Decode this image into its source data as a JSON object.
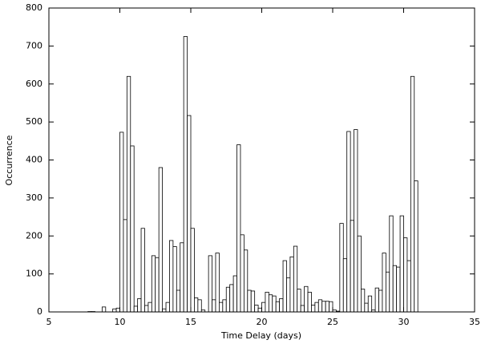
{
  "chart_data": {
    "type": "histogram",
    "x_label": "Time Delay (days)",
    "y_label": "Occurrence",
    "bins": [
      7.75,
      8,
      8.25,
      8.5,
      8.75,
      9,
      9.25,
      9.5,
      9.75,
      10,
      10.25,
      10.5,
      10.75,
      11,
      11.25,
      11.5,
      11.75,
      12,
      12.25,
      12.5,
      12.75,
      13,
      13.25,
      13.5,
      13.75,
      14,
      14.25,
      14.5,
      14.75,
      15,
      15.25,
      15.5,
      15.75,
      16,
      16.25,
      16.5,
      16.75,
      17,
      17.25,
      17.5,
      17.75,
      18,
      18.25,
      18.5,
      18.75,
      19,
      19.25,
      19.5,
      19.75,
      20,
      20.25,
      20.5,
      20.75,
      21,
      21.25,
      21.5,
      21.75,
      22,
      22.25,
      22.5,
      22.75,
      23,
      23.25,
      23.5,
      23.75,
      24,
      24.25,
      24.5,
      24.75,
      25,
      25.25,
      25.5,
      25.75,
      26,
      26.25,
      26.5,
      26.75,
      27,
      27.25,
      27.5,
      27.75,
      28,
      28.25,
      28.5,
      28.75,
      29,
      29.25,
      29.5,
      29.75,
      30,
      30.25,
      30.5,
      30.75,
      31
    ],
    "values": [
      1,
      1,
      0,
      0,
      13,
      0,
      0,
      8,
      10,
      473,
      243,
      620,
      437,
      15,
      35,
      220,
      17,
      25,
      148,
      143,
      380,
      8,
      25,
      188,
      172,
      57,
      182,
      725,
      517,
      220,
      37,
      32,
      5,
      0,
      148,
      32,
      155,
      25,
      32,
      65,
      72,
      95,
      440,
      203,
      163,
      57,
      55,
      18,
      10,
      25,
      52,
      45,
      42,
      27,
      35,
      135,
      90,
      145,
      173,
      60,
      17,
      67,
      52,
      18,
      25,
      32,
      28,
      28,
      27,
      5,
      2,
      233,
      140,
      475,
      241,
      480,
      200,
      60,
      23,
      42,
      5,
      63,
      57,
      155,
      105,
      253,
      122,
      118,
      253,
      195,
      135,
      620,
      345
    ],
    "color": "#ffffff",
    "xlim": [
      5,
      35
    ],
    "xticks": [
      5,
      10,
      15,
      20,
      25,
      30,
      35
    ],
    "ylim": [
      0,
      800
    ],
    "yticks": [
      0,
      100,
      200,
      300,
      400,
      500,
      600,
      700,
      800
    ]
  }
}
